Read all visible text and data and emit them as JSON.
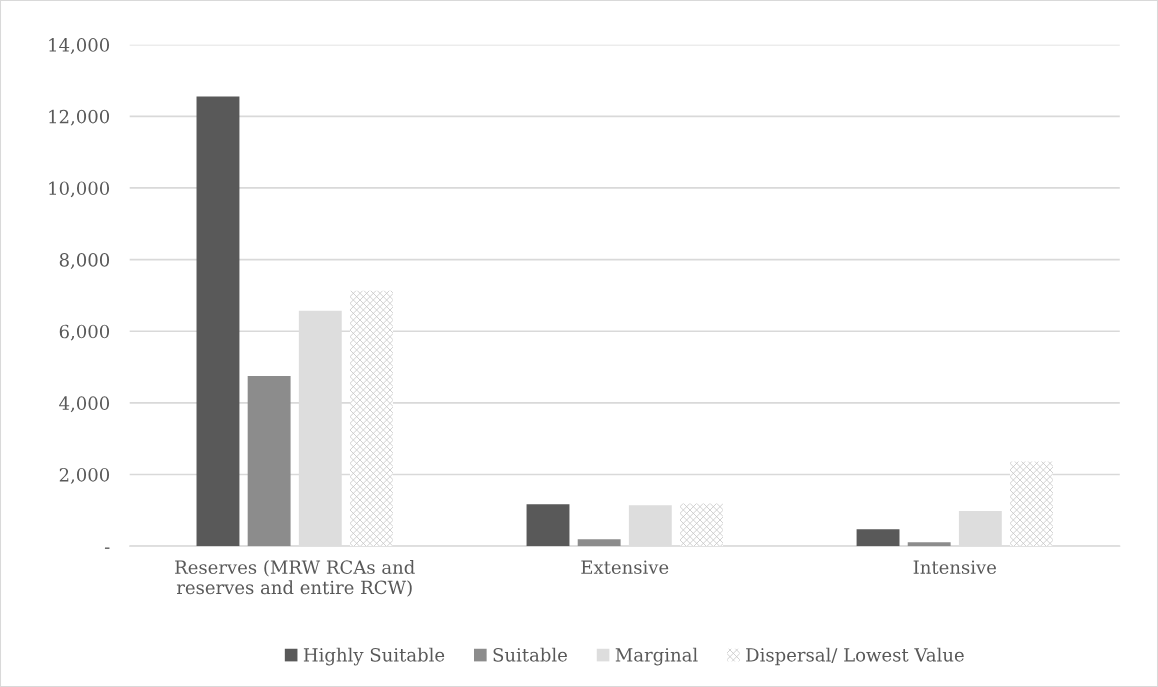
{
  "chart_data": {
    "type": "bar",
    "categories": [
      "Reserves (MRW RCAs and\nreserves and entire RCW)",
      "Extensive",
      "Intensive"
    ],
    "series": [
      {
        "name": "Highly Suitable",
        "color": "#595959",
        "values": [
          12550,
          1170,
          470
        ]
      },
      {
        "name": "Suitable",
        "color": "#8c8c8c",
        "values": [
          4750,
          190,
          110
        ]
      },
      {
        "name": "Marginal",
        "color": "#dddddd",
        "values": [
          6570,
          1140,
          980
        ]
      },
      {
        "name": "Dispersal/ Lowest Value",
        "color": "#c8c8c8",
        "values": [
          7130,
          1190,
          2360
        ]
      }
    ],
    "ylim": [
      0,
      14000
    ],
    "yticks": [
      {
        "value": 0,
        "label": "-"
      },
      {
        "value": 2000,
        "label": "2,000"
      },
      {
        "value": 4000,
        "label": "4,000"
      },
      {
        "value": 6000,
        "label": "6,000"
      },
      {
        "value": 8000,
        "label": "8,000"
      },
      {
        "value": 10000,
        "label": "10,000"
      },
      {
        "value": 12000,
        "label": "12,000"
      },
      {
        "value": 14000,
        "label": "14,000"
      }
    ],
    "grid": "y",
    "legend": "bottom"
  }
}
